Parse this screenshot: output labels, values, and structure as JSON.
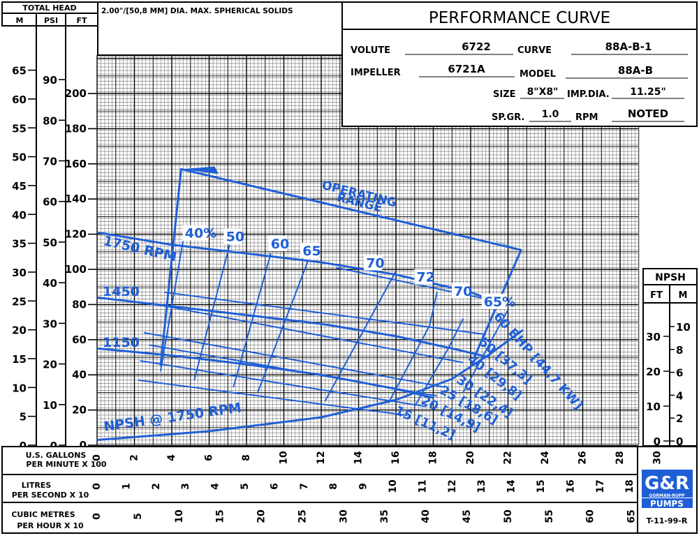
{
  "header": {
    "total_head": "TOTAL HEAD",
    "unit_m": "M",
    "unit_psi": "PSI",
    "unit_ft": "FT",
    "solids_note": "2.00\"/[50,8 MM] DIA. MAX. SPHERICAL SOLIDS",
    "title": "PERFORMANCE CURVE"
  },
  "specs": {
    "volute_label": "VOLUTE",
    "volute_value": "6722",
    "curve_label": "CURVE",
    "curve_value": "88A-B-1",
    "impeller_label": "IMPELLER",
    "impeller_value": "6721A",
    "model_label": "MODEL",
    "model_value": "88A-B",
    "size_label": "SIZE",
    "size_value": "8\"X8\"",
    "impdia_label": "IMP.DIA.",
    "impdia_value": "11.25\"",
    "spgr_label": "SP.GR.",
    "spgr_value": "1.0",
    "rpm_label": "RPM",
    "rpm_value": "NOTED"
  },
  "npsh_box": {
    "title": "NPSH",
    "unit_ft": "FT",
    "unit_m": "M",
    "ft_ticks": [
      "30",
      "20",
      "10",
      "0"
    ],
    "m_ticks": [
      "10",
      "8",
      "6",
      "4",
      "2",
      "0"
    ]
  },
  "axes": {
    "ft_ticks": [
      "200",
      "180",
      "160",
      "140",
      "120",
      "100",
      "80",
      "60",
      "40",
      "20",
      "0"
    ],
    "psi_ticks": [
      "90",
      "80",
      "70",
      "60",
      "50",
      "40",
      "30",
      "20",
      "10",
      "0"
    ],
    "m_ticks": [
      "65",
      "60",
      "55",
      "50",
      "45",
      "40",
      "35",
      "30",
      "25",
      "20",
      "15",
      "10",
      "5",
      "0"
    ],
    "gpm_label_1": "U.S. GALLONS",
    "gpm_label_2": "PER MINUTE  X 100",
    "gpm_ticks": [
      "0",
      "2",
      "4",
      "6",
      "8",
      "10",
      "12",
      "14",
      "16",
      "18",
      "20",
      "22",
      "24",
      "26",
      "28",
      "30"
    ],
    "lps_label_1": "LITRES",
    "lps_label_2": "PER SECOND  X 10",
    "lps_ticks": [
      "0",
      "1",
      "2",
      "3",
      "4",
      "5",
      "6",
      "7",
      "8",
      "9",
      "10",
      "11",
      "12",
      "13",
      "14",
      "15",
      "16",
      "17",
      "18"
    ],
    "cmh_label_1": "CUBIC METRES",
    "cmh_label_2": "PER HOUR  X 10",
    "cmh_ticks": [
      "0",
      "5",
      "10",
      "15",
      "20",
      "25",
      "30",
      "35",
      "40",
      "45",
      "50",
      "55",
      "60",
      "65"
    ]
  },
  "logo": {
    "line1": "G&R",
    "line2": "GORMAN-RUPP",
    "line3": "PUMPS"
  },
  "footer_code": "T-11-99-R",
  "colors": {
    "curve": "#1f5fd6",
    "grid": "#000000"
  },
  "chart_data": {
    "type": "line",
    "xlabel": "U.S. GALLONS PER MINUTE X 100",
    "ylabel": "TOTAL HEAD FT",
    "xlim": [
      0,
      30
    ],
    "ylim": [
      0,
      220
    ],
    "grid": true,
    "head_curves": [
      {
        "name": "1750 RPM",
        "points": [
          [
            0,
            121
          ],
          [
            4,
            114
          ],
          [
            8,
            109
          ],
          [
            12,
            104
          ],
          [
            16,
            97
          ],
          [
            20,
            87
          ],
          [
            22,
            79
          ]
        ]
      },
      {
        "name": "1450",
        "points": [
          [
            0,
            84
          ],
          [
            4,
            79
          ],
          [
            8,
            74
          ],
          [
            12,
            69
          ],
          [
            16,
            62
          ],
          [
            19,
            55
          ],
          [
            21,
            50
          ]
        ]
      },
      {
        "name": "1150",
        "points": [
          [
            0,
            55
          ],
          [
            4,
            51
          ],
          [
            8,
            46
          ],
          [
            12,
            40
          ],
          [
            16,
            32
          ],
          [
            18,
            27
          ]
        ]
      }
    ],
    "efficiency_lines": [
      {
        "label": "40%",
        "points": [
          [
            3.4,
            42
          ],
          [
            4.6,
            116
          ]
        ]
      },
      {
        "label": "50",
        "points": [
          [
            5.2,
            37
          ],
          [
            7.1,
            114
          ]
        ]
      },
      {
        "label": "60",
        "points": [
          [
            7.3,
            33
          ],
          [
            9.3,
            109
          ]
        ]
      },
      {
        "label": "65",
        "points": [
          [
            8.6,
            30
          ],
          [
            11.3,
            105
          ]
        ]
      },
      {
        "label": "70",
        "points": [
          [
            12.2,
            25
          ],
          [
            16.0,
            99
          ]
        ]
      },
      {
        "label": "72",
        "points": [
          [
            15.6,
            24
          ],
          [
            17.8,
            68
          ],
          [
            18.2,
            87
          ]
        ]
      },
      {
        "label": "70",
        "points": [
          [
            17.0,
            22
          ],
          [
            18.8,
            55
          ],
          [
            19.6,
            72
          ]
        ]
      },
      {
        "label": "65%",
        "points": [
          [
            19.6,
            30
          ],
          [
            22.0,
            77
          ]
        ]
      }
    ],
    "bhp_lines": [
      {
        "label": "60 BHP [44,7 KW]",
        "points": [
          [
            12.8,
            101
          ],
          [
            21.8,
            81
          ]
        ]
      },
      {
        "label": "50 [37,3]",
        "points": [
          [
            3.6,
            87
          ],
          [
            20.8,
            63
          ]
        ]
      },
      {
        "label": "40 [29,8]",
        "points": [
          [
            3.2,
            80
          ],
          [
            19.6,
            47
          ]
        ]
      },
      {
        "label": "30 [22,4]",
        "points": [
          [
            2.5,
            64
          ],
          [
            18.6,
            33
          ]
        ]
      },
      {
        "label": "25 [18,6]",
        "points": [
          [
            2.8,
            57
          ],
          [
            18.2,
            28
          ]
        ]
      },
      {
        "label": "20 [14,9]",
        "points": [
          [
            2.3,
            48
          ],
          [
            17.6,
            22
          ]
        ]
      },
      {
        "label": "15 [11,2]",
        "points": [
          [
            2.2,
            37
          ],
          [
            16.6,
            17
          ]
        ]
      }
    ],
    "npsh_curve": {
      "name": "NPSH @ 1750 RPM",
      "points": [
        [
          0,
          1.5
        ],
        [
          6,
          4
        ],
        [
          12,
          8
        ],
        [
          16,
          13
        ],
        [
          19,
          19
        ],
        [
          21,
          26
        ],
        [
          22.8,
          33
        ]
      ]
    },
    "operating_range": {
      "label": "OPERATING RANGE",
      "points": [
        [
          3.4,
          45
        ],
        [
          4.5,
          157
        ],
        [
          22.7,
          111
        ],
        [
          20.2,
          50
        ]
      ]
    }
  }
}
